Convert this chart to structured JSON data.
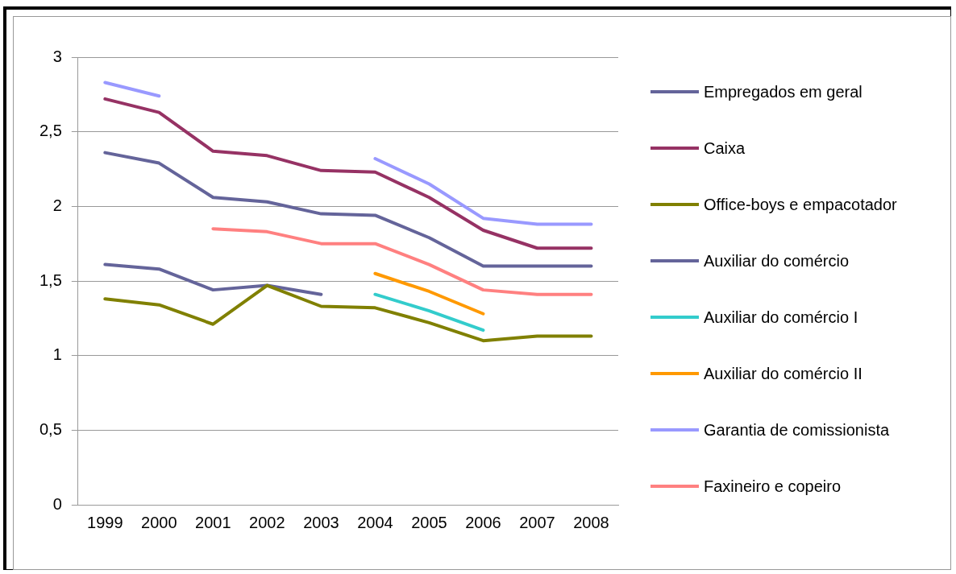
{
  "chart_data": {
    "type": "line",
    "categories": [
      "1999",
      "2000",
      "2001",
      "2002",
      "2003",
      "2004",
      "2005",
      "2006",
      "2007",
      "2008"
    ],
    "series": [
      {
        "name": "Empregados em geral",
        "color": "#64649a",
        "values": [
          2.36,
          2.29,
          2.06,
          2.03,
          1.95,
          1.94,
          1.79,
          1.6,
          1.6,
          1.6
        ]
      },
      {
        "name": "Caixa",
        "color": "#963264",
        "values": [
          2.72,
          2.63,
          2.37,
          2.34,
          2.24,
          2.23,
          2.06,
          1.84,
          1.72,
          1.72
        ]
      },
      {
        "name": "Office-boys e empacotador",
        "color": "#808000",
        "values": [
          1.38,
          1.34,
          1.21,
          1.47,
          1.33,
          1.32,
          1.22,
          1.1,
          1.13,
          1.13
        ]
      },
      {
        "name": "Auxiliar do comércio",
        "color": "#64649a",
        "values": [
          1.61,
          1.58,
          1.44,
          1.47,
          1.41,
          null,
          null,
          null,
          null,
          null
        ]
      },
      {
        "name": "Auxiliar do comércio I",
        "color": "#33cccc",
        "values": [
          null,
          null,
          null,
          null,
          null,
          1.41,
          1.3,
          1.17,
          null,
          null
        ]
      },
      {
        "name": "Auxiliar do comércio II",
        "color": "#ff9900",
        "values": [
          null,
          null,
          null,
          null,
          null,
          1.55,
          1.43,
          1.28,
          null,
          null
        ]
      },
      {
        "name": "Garantia de comissionista",
        "color": "#9999ff",
        "values": [
          2.83,
          2.74,
          null,
          null,
          null,
          2.32,
          2.15,
          1.92,
          1.88,
          1.88
        ]
      },
      {
        "name": "Faxineiro e copeiro",
        "color": "#ff8080",
        "values": [
          null,
          null,
          1.85,
          1.83,
          1.75,
          1.75,
          1.61,
          1.44,
          1.41,
          1.41
        ]
      }
    ],
    "ylim": [
      0,
      3
    ],
    "yticks": [
      0,
      {
        "value": 0.5,
        "label": "0,5"
      },
      1,
      {
        "value": 1.5,
        "label": "1,5"
      },
      2,
      {
        "value": 2.5,
        "label": "2,5"
      },
      3
    ],
    "grid": "y",
    "legend": "right",
    "marker": "none",
    "line_style": "solid"
  }
}
